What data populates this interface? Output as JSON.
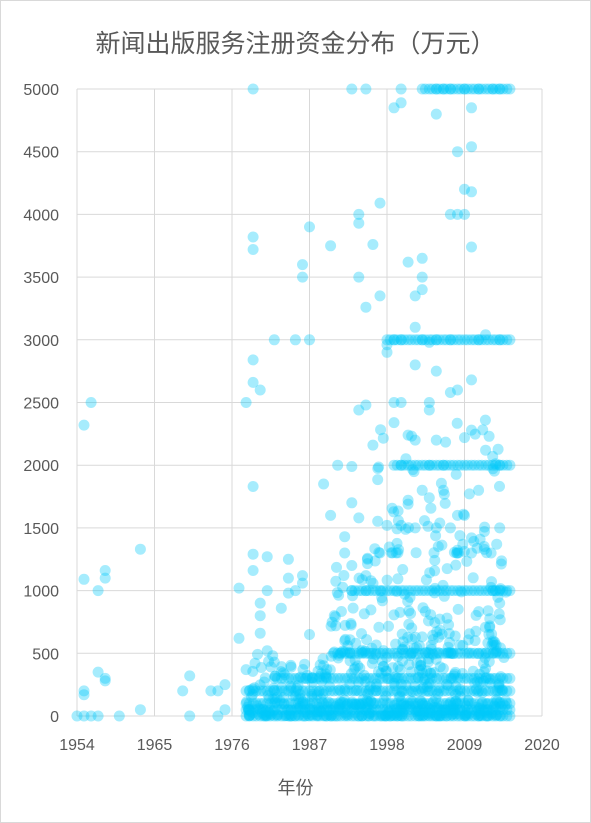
{
  "chart_data": {
    "type": "scatter",
    "title": "新闻出版服务注册资金分布（万元）",
    "xlabel": "年份",
    "ylabel": "",
    "xlim": [
      1954,
      2020
    ],
    "ylim": [
      0,
      5000
    ],
    "xticks": [
      1954,
      1965,
      1976,
      1987,
      1998,
      2009,
      2020
    ],
    "yticks": [
      0,
      500,
      1000,
      1500,
      2000,
      2500,
      3000,
      3500,
      4000,
      4500,
      5000
    ],
    "grid": true,
    "marker_color": "#00C8F8",
    "marker_opacity": 0.35,
    "series": [
      {
        "points": [
          [
            1954,
            0
          ],
          [
            1955,
            0
          ],
          [
            1955,
            1090
          ],
          [
            1955,
            200
          ],
          [
            1955,
            170
          ],
          [
            1955,
            2320
          ],
          [
            1956,
            2500
          ],
          [
            1956,
            0
          ],
          [
            1957,
            0
          ],
          [
            1957,
            350
          ],
          [
            1957,
            1000
          ],
          [
            1958,
            1100
          ],
          [
            1958,
            1160
          ],
          [
            1958,
            300
          ],
          [
            1958,
            280
          ],
          [
            1960,
            0
          ],
          [
            1963,
            1330
          ],
          [
            1963,
            50
          ],
          [
            1969,
            200
          ],
          [
            1970,
            320
          ],
          [
            1970,
            0
          ],
          [
            1973,
            200
          ],
          [
            1974,
            200
          ],
          [
            1974,
            0
          ],
          [
            1975,
            250
          ],
          [
            1975,
            50
          ],
          [
            1977,
            620
          ],
          [
            1977,
            1020
          ],
          [
            1978,
            2500
          ],
          [
            1978,
            370
          ],
          [
            1979,
            5000
          ],
          [
            1979,
            3720
          ],
          [
            1979,
            3820
          ],
          [
            1979,
            2840
          ],
          [
            1979,
            2660
          ],
          [
            1979,
            1830
          ],
          [
            1979,
            1290
          ],
          [
            1979,
            1160
          ],
          [
            1980,
            900
          ],
          [
            1980,
            800
          ],
          [
            1980,
            660
          ],
          [
            1980,
            2600
          ],
          [
            1981,
            1270
          ],
          [
            1981,
            1000
          ],
          [
            1981,
            520
          ],
          [
            1982,
            3000
          ],
          [
            1982,
            430
          ],
          [
            1983,
            860
          ],
          [
            1984,
            1250
          ],
          [
            1984,
            1100
          ],
          [
            1984,
            980
          ],
          [
            1985,
            1000
          ],
          [
            1985,
            3000
          ],
          [
            1986,
            3500
          ],
          [
            1986,
            3600
          ],
          [
            1986,
            1060
          ],
          [
            1986,
            1120
          ],
          [
            1987,
            650
          ],
          [
            1987,
            3000
          ],
          [
            1987,
            3900
          ],
          [
            1989,
            1850
          ],
          [
            1990,
            1600
          ],
          [
            1990,
            3750
          ],
          [
            1991,
            2000
          ],
          [
            1992,
            1300
          ],
          [
            1992,
            1430
          ],
          [
            1992,
            600
          ],
          [
            1993,
            5000
          ],
          [
            1993,
            1990
          ],
          [
            1993,
            1700
          ],
          [
            1993,
            1200
          ],
          [
            1993,
            1000
          ],
          [
            1994,
            3500
          ],
          [
            1994,
            4000
          ],
          [
            1994,
            3930
          ],
          [
            1994,
            2440
          ],
          [
            1994,
            1580
          ],
          [
            1995,
            1120
          ],
          [
            1995,
            1000
          ],
          [
            1995,
            5000
          ],
          [
            1995,
            3260
          ],
          [
            1995,
            2480
          ],
          [
            1996,
            3760
          ],
          [
            1996,
            2160
          ],
          [
            1997,
            4090
          ],
          [
            1997,
            3350
          ],
          [
            1997,
            1300
          ],
          [
            1998,
            2960
          ],
          [
            1998,
            2900
          ],
          [
            1998,
            1520
          ],
          [
            1999,
            3000
          ],
          [
            1999,
            2500
          ],
          [
            1999,
            2340
          ],
          [
            1999,
            4850
          ],
          [
            2000,
            5000
          ],
          [
            2000,
            4890
          ],
          [
            2000,
            3000
          ],
          [
            2000,
            2500
          ],
          [
            2000,
            2000
          ],
          [
            2000,
            1520
          ],
          [
            2001,
            3620
          ],
          [
            2001,
            2240
          ],
          [
            2001,
            1690
          ],
          [
            2001,
            1720
          ],
          [
            2002,
            3350
          ],
          [
            2002,
            2800
          ],
          [
            2002,
            1500
          ],
          [
            2002,
            3100
          ],
          [
            2002,
            2200
          ],
          [
            2003,
            3500
          ],
          [
            2003,
            3650
          ],
          [
            2003,
            3400
          ],
          [
            2003,
            1800
          ],
          [
            2003,
            3000
          ],
          [
            2004,
            2980
          ],
          [
            2004,
            2500
          ],
          [
            2004,
            2440
          ],
          [
            2004,
            2000
          ],
          [
            2004,
            1740
          ],
          [
            2005,
            4800
          ],
          [
            2005,
            3000
          ],
          [
            2005,
            2750
          ],
          [
            2005,
            2200
          ],
          [
            2005,
            1500
          ],
          [
            2005,
            5000
          ],
          [
            2006,
            5000
          ],
          [
            2006,
            2000
          ],
          [
            2006,
            1800
          ],
          [
            2007,
            4000
          ],
          [
            2007,
            3000
          ],
          [
            2007,
            2580
          ],
          [
            2007,
            1500
          ],
          [
            2007,
            5000
          ],
          [
            2008,
            4500
          ],
          [
            2008,
            4000
          ],
          [
            2008,
            2600
          ],
          [
            2008,
            1600
          ],
          [
            2009,
            5000
          ],
          [
            2009,
            4200
          ],
          [
            2009,
            4000
          ],
          [
            2009,
            2220
          ],
          [
            2009,
            1600
          ],
          [
            2010,
            4850
          ],
          [
            2010,
            4540
          ],
          [
            2010,
            4180
          ],
          [
            2010,
            3740
          ],
          [
            2010,
            2680
          ],
          [
            2010,
            2280
          ],
          [
            2010,
            1420
          ],
          [
            2010,
            1300
          ],
          [
            2011,
            5000
          ],
          [
            2011,
            3000
          ],
          [
            2011,
            1800
          ],
          [
            2012,
            3040
          ],
          [
            2012,
            2120
          ],
          [
            2013,
            5000
          ],
          [
            2013,
            2070
          ],
          [
            2013,
            1000
          ],
          [
            2014,
            5000
          ],
          [
            2014,
            3000
          ],
          [
            2014,
            2000
          ],
          [
            2014,
            1500
          ],
          [
            2014,
            900
          ]
        ],
        "bands": [
          {
            "x": [
              1978,
              2015
            ],
            "y": 0,
            "count": 38
          },
          {
            "x": [
              1978,
              2015
            ],
            "y": 50,
            "count": 38
          },
          {
            "x": [
              1978,
              2015
            ],
            "y": 100,
            "count": 38
          },
          {
            "x": [
              1978,
              2015
            ],
            "y": 200,
            "count": 38
          },
          {
            "x": [
              1982,
              2015
            ],
            "y": 300,
            "count": 34
          },
          {
            "x": [
              1991,
              2015
            ],
            "y": 500,
            "count": 25
          },
          {
            "x": [
              1993,
              2015
            ],
            "y": 1000,
            "count": 23
          },
          {
            "x": [
              1999,
              2015
            ],
            "y": 2000,
            "count": 17
          },
          {
            "x": [
              1998,
              2015
            ],
            "y": 3000,
            "count": 18
          },
          {
            "x": [
              2003,
              2015
            ],
            "y": 5000,
            "count": 13
          }
        ],
        "clusters": [
          {
            "x": [
              1978,
              2015
            ],
            "y": [
              0,
              500
            ],
            "count": 420
          },
          {
            "x": [
              1990,
              2015
            ],
            "y": [
              500,
              1300
            ],
            "count": 160
          },
          {
            "x": [
              1996,
              2015
            ],
            "y": [
              1300,
              2400
            ],
            "count": 70
          }
        ]
      }
    ]
  }
}
